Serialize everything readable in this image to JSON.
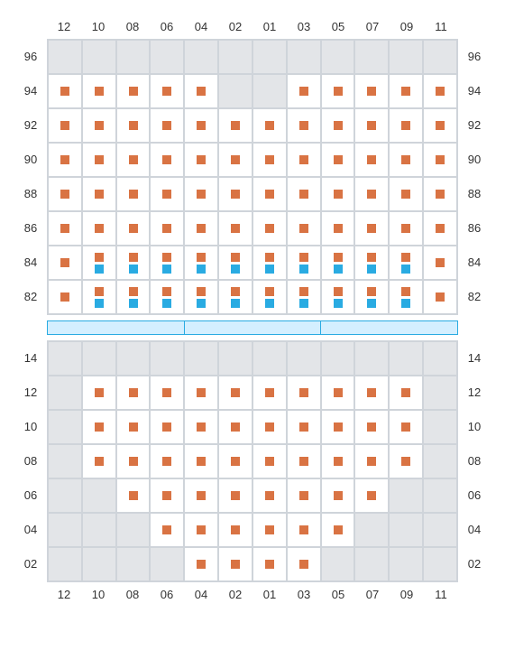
{
  "column_labels": [
    "12",
    "10",
    "08",
    "06",
    "04",
    "02",
    "01",
    "03",
    "05",
    "07",
    "09",
    "11"
  ],
  "upper": {
    "row_labels": [
      "96",
      "94",
      "92",
      "90",
      "88",
      "86",
      "84",
      "82"
    ],
    "cells": [
      [
        "g",
        "g",
        "g",
        "g",
        "g",
        "g",
        "g",
        "g",
        "g",
        "g",
        "g",
        "g"
      ],
      [
        "o",
        "o",
        "o",
        "o",
        "o",
        "g",
        "g",
        "o",
        "o",
        "o",
        "o",
        "o"
      ],
      [
        "o",
        "o",
        "o",
        "o",
        "o",
        "o",
        "o",
        "o",
        "o",
        "o",
        "o",
        "o"
      ],
      [
        "o",
        "o",
        "o",
        "o",
        "o",
        "o",
        "o",
        "o",
        "o",
        "o",
        "o",
        "o"
      ],
      [
        "o",
        "o",
        "o",
        "o",
        "o",
        "o",
        "o",
        "o",
        "o",
        "o",
        "o",
        "o"
      ],
      [
        "o",
        "o",
        "o",
        "o",
        "o",
        "o",
        "o",
        "o",
        "o",
        "o",
        "o",
        "o"
      ],
      [
        "o",
        "d",
        "d",
        "d",
        "d",
        "d",
        "d",
        "d",
        "d",
        "d",
        "d",
        "o"
      ],
      [
        "o",
        "d",
        "d",
        "d",
        "d",
        "d",
        "d",
        "d",
        "d",
        "d",
        "d",
        "o"
      ]
    ]
  },
  "tables": 3,
  "lower": {
    "row_labels": [
      "14",
      "12",
      "10",
      "08",
      "06",
      "04",
      "02"
    ],
    "cells": [
      [
        "g",
        "g",
        "g",
        "g",
        "g",
        "g",
        "g",
        "g",
        "g",
        "g",
        "g",
        "g"
      ],
      [
        "g",
        "o",
        "o",
        "o",
        "o",
        "o",
        "o",
        "o",
        "o",
        "o",
        "o",
        "g"
      ],
      [
        "g",
        "o",
        "o",
        "o",
        "o",
        "o",
        "o",
        "o",
        "o",
        "o",
        "o",
        "g"
      ],
      [
        "g",
        "o",
        "o",
        "o",
        "o",
        "o",
        "o",
        "o",
        "o",
        "o",
        "o",
        "g"
      ],
      [
        "g",
        "g",
        "o",
        "o",
        "o",
        "o",
        "o",
        "o",
        "o",
        "o",
        "g",
        "g"
      ],
      [
        "g",
        "g",
        "g",
        "o",
        "o",
        "o",
        "o",
        "o",
        "o",
        "g",
        "g",
        "g"
      ],
      [
        "g",
        "g",
        "g",
        "g",
        "o",
        "o",
        "o",
        "o",
        "g",
        "g",
        "g",
        "g"
      ]
    ]
  },
  "colors": {
    "orange": "#d97343",
    "blue": "#29abe2",
    "grey": "#e3e5e8",
    "border": "#cfd4da",
    "table_fill": "#d4efff"
  }
}
